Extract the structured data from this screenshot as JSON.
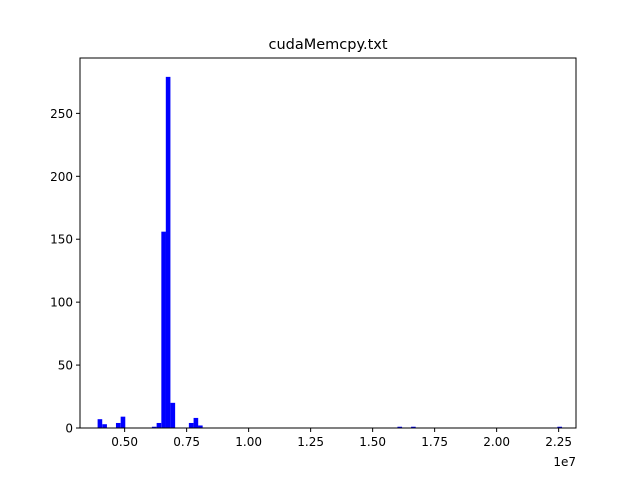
{
  "chart_data": {
    "type": "bar",
    "title": "cudaMemcpy.txt",
    "xlabel": "",
    "ylabel": "",
    "x_offset_label": "1e7",
    "xlim": [
      3.2,
      23.2
    ],
    "ylim": [
      0,
      294
    ],
    "xticks": [
      5,
      7.5,
      10,
      12.5,
      15,
      17.5,
      20,
      22.5
    ],
    "xtick_labels": [
      "0.50",
      "0.75",
      "1.00",
      "1.25",
      "1.50",
      "1.75",
      "2.00",
      "2.25"
    ],
    "yticks": [
      0,
      50,
      100,
      150,
      200,
      250
    ],
    "ytick_labels": [
      "0",
      "50",
      "100",
      "150",
      "200",
      "250"
    ],
    "bar_color": "#0000ff",
    "bin_width": 0.186,
    "bins": [
      {
        "x": 3.91,
        "count": 7
      },
      {
        "x": 4.1,
        "count": 3
      },
      {
        "x": 4.65,
        "count": 4
      },
      {
        "x": 4.84,
        "count": 9
      },
      {
        "x": 6.1,
        "count": 1
      },
      {
        "x": 6.29,
        "count": 4
      },
      {
        "x": 6.48,
        "count": 156
      },
      {
        "x": 6.66,
        "count": 279
      },
      {
        "x": 6.85,
        "count": 20
      },
      {
        "x": 7.59,
        "count": 4
      },
      {
        "x": 7.78,
        "count": 8
      },
      {
        "x": 7.96,
        "count": 2
      },
      {
        "x": 16.0,
        "count": 1
      },
      {
        "x": 16.55,
        "count": 1
      },
      {
        "x": 22.45,
        "count": 1
      }
    ]
  }
}
